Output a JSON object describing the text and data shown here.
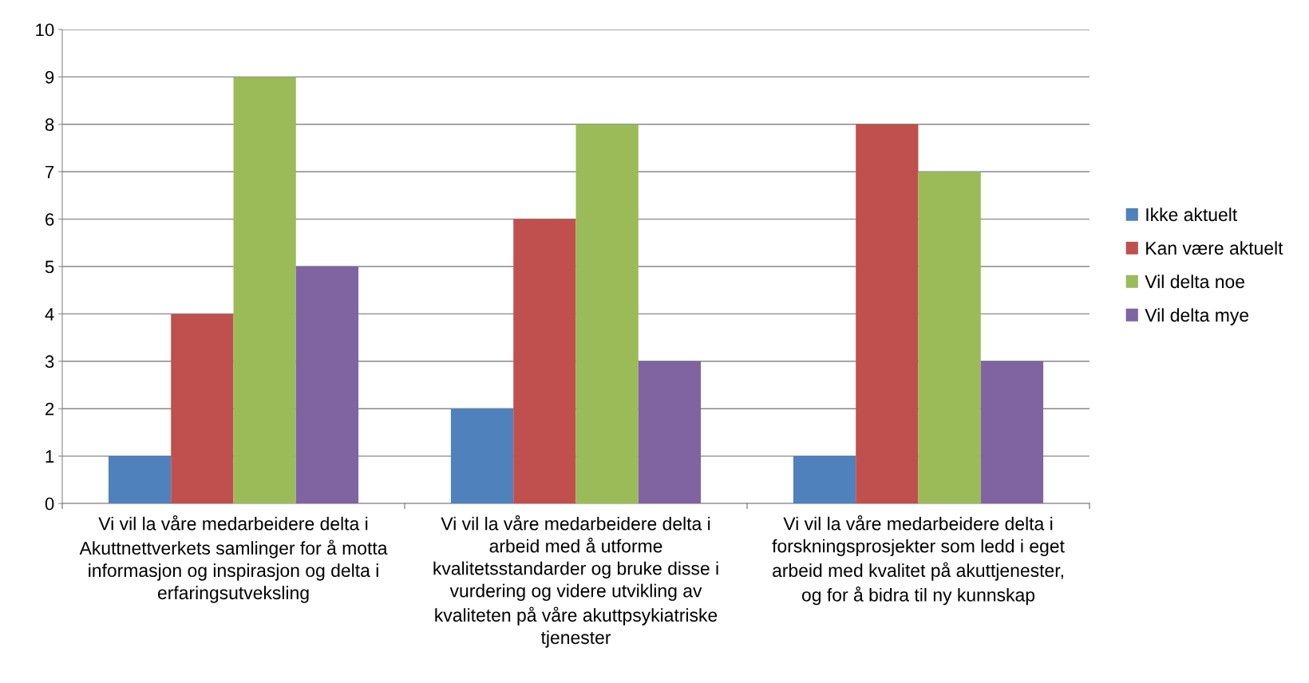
{
  "chart_data": {
    "type": "bar",
    "categories": [
      "Vi vil la våre medarbeidere delta i\nAkuttnettverkets samlinger for å motta\ninformasjon og inspirasjon og delta i\nerfaringsutveksling",
      "Vi vil la våre medarbeidere delta i\narbeid med å utforme\nkvalitetsstandarder og bruke disse i\nvurdering og videre utvikling av\nkvaliteten på våre akuttpsykiatriske\ntjenester",
      "Vi vil la våre medarbeidere delta i\nforskningsprosjekter som ledd i eget\narbeid med kvalitet på akuttjenester,\nog for å bidra til ny kunnskap"
    ],
    "series": [
      {
        "name": "Ikke aktuelt",
        "color": "#4f81bd",
        "values": [
          1,
          2,
          1
        ]
      },
      {
        "name": "Kan være aktuelt",
        "color": "#c0504d",
        "values": [
          4,
          6,
          8
        ]
      },
      {
        "name": "Vil delta noe",
        "color": "#9bbb59",
        "values": [
          9,
          8,
          7
        ]
      },
      {
        "name": "Vil delta mye",
        "color": "#8064a2",
        "values": [
          5,
          3,
          3
        ]
      }
    ],
    "ylim": [
      0,
      10
    ],
    "yticks": [
      0,
      1,
      2,
      3,
      4,
      5,
      6,
      7,
      8,
      9,
      10
    ],
    "grid": "y",
    "legend": "right"
  }
}
